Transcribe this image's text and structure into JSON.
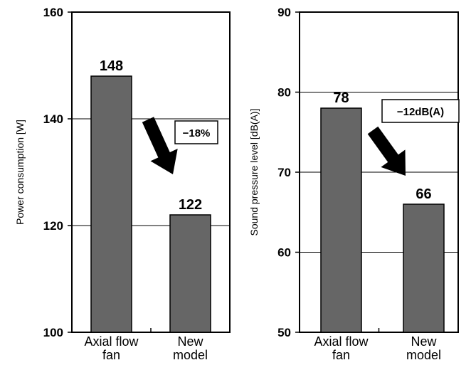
{
  "chart_data": [
    {
      "type": "bar",
      "ylabel": "Power consumption [W]",
      "ylim": [
        100,
        160
      ],
      "yticks": [
        100,
        120,
        140,
        160
      ],
      "categories": [
        [
          "Axial flow",
          "fan"
        ],
        [
          "New",
          "model"
        ]
      ],
      "values": [
        148,
        122
      ],
      "data_labels": [
        "148",
        "122"
      ],
      "annotation": "−18%",
      "grid": true,
      "bar_color": "#666666"
    },
    {
      "type": "bar",
      "ylabel": "Sound pressure level [dB(A)]",
      "ylim": [
        50,
        90
      ],
      "yticks": [
        50,
        60,
        70,
        80,
        90
      ],
      "categories": [
        [
          "Axial flow",
          "fan"
        ],
        [
          "New",
          "model"
        ]
      ],
      "values": [
        78,
        66
      ],
      "data_labels": [
        "78",
        "66"
      ],
      "annotation": "−12dB(A)",
      "grid": true,
      "bar_color": "#666666"
    }
  ]
}
